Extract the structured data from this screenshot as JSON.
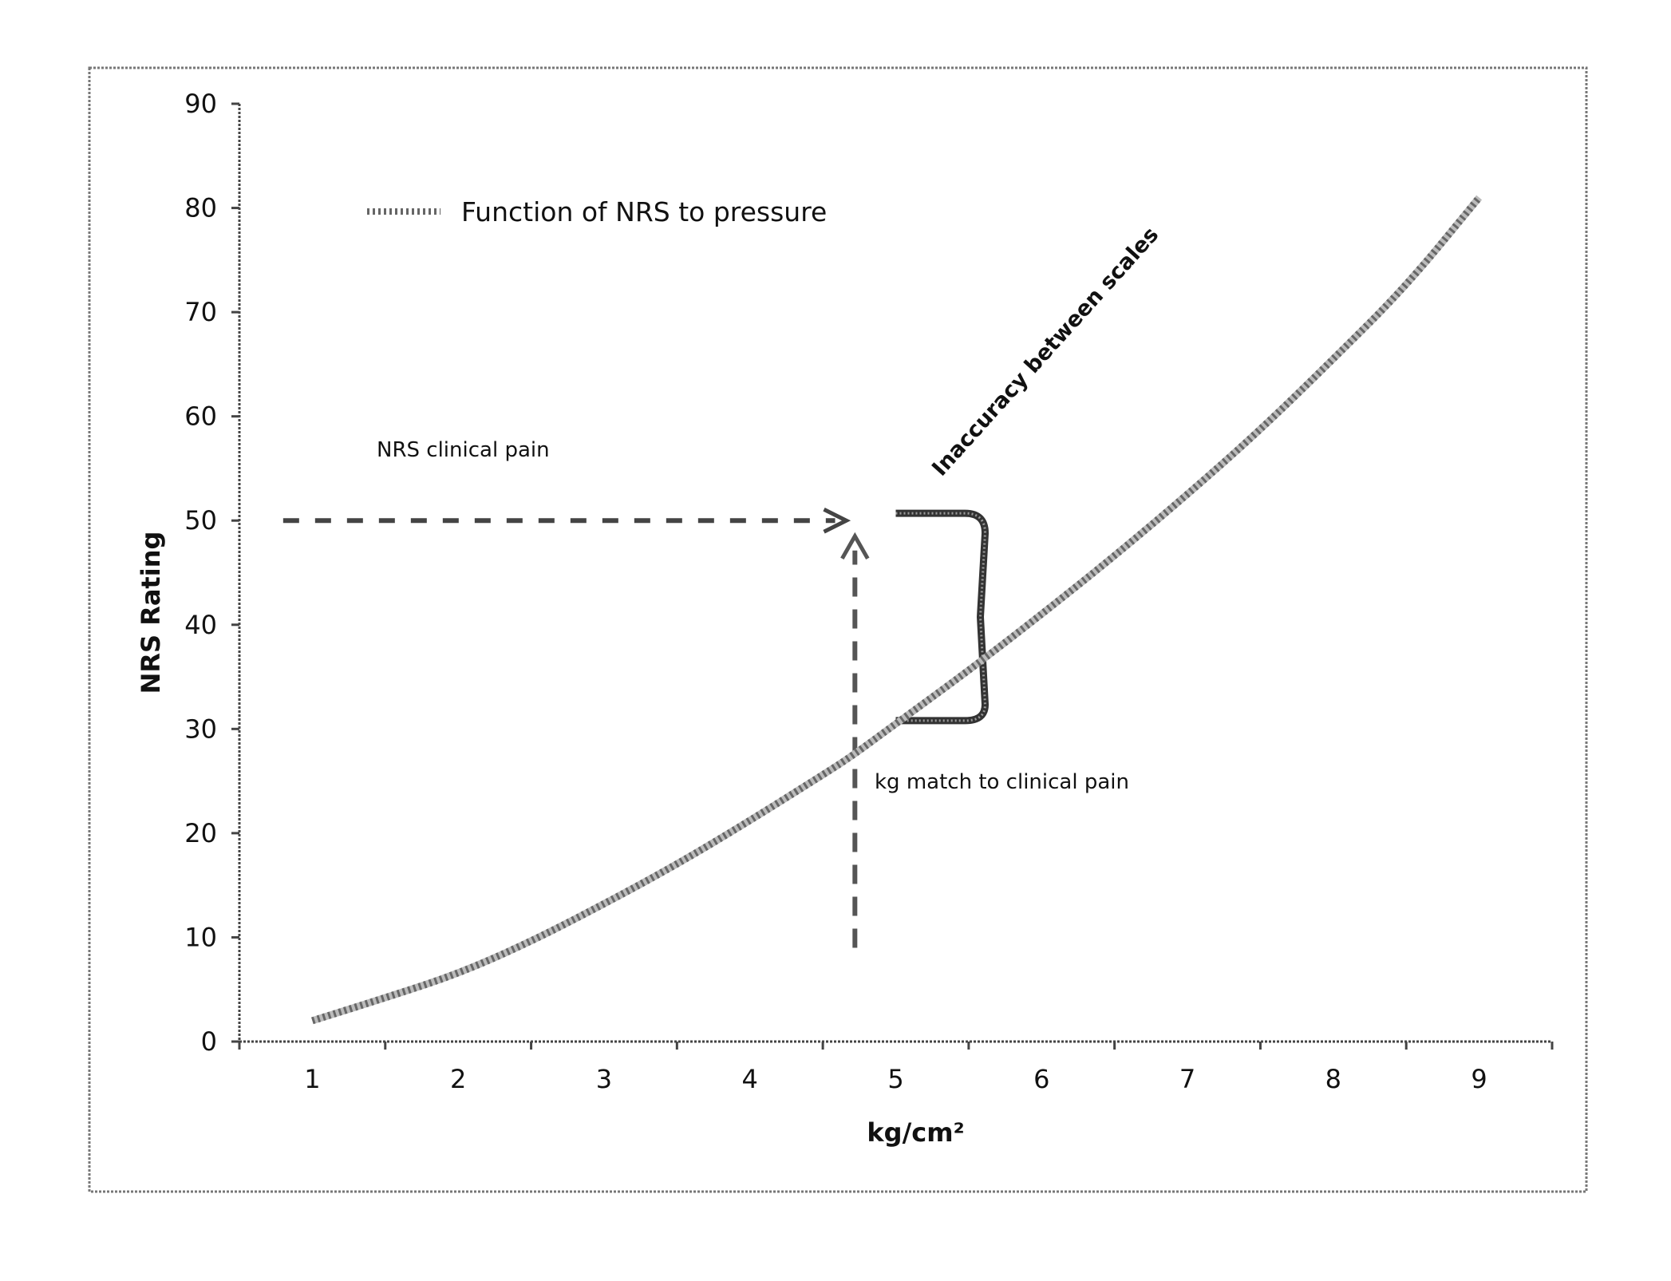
{
  "chart_data": {
    "type": "line",
    "xlabel": "kg/cm²",
    "ylabel": "NRS Rating",
    "xlim": [
      0.5,
      9.5
    ],
    "ylim": [
      0,
      90
    ],
    "x_ticks": [
      1,
      2,
      3,
      4,
      5,
      6,
      7,
      8,
      9
    ],
    "y_ticks": [
      0,
      10,
      20,
      30,
      40,
      50,
      60,
      70,
      80,
      90
    ],
    "grid": false,
    "legend_position": "top-left",
    "series": [
      {
        "name": "Function of NRS to pressure",
        "x": [
          1,
          1.5,
          2,
          2.5,
          3,
          3.5,
          4,
          4.5,
          4.7,
          5,
          5.5,
          6,
          6.5,
          7,
          7.5,
          8,
          8.5,
          9
        ],
        "y": [
          2,
          4.2,
          6.5,
          9.6,
          13.2,
          17,
          21.2,
          25.6,
          27.4,
          30.5,
          35.6,
          41,
          46.6,
          52.5,
          58.7,
          65.5,
          72.5,
          81
        ]
      }
    ],
    "annotations": {
      "nrs_clinical_pain": {
        "label": "NRS clinical pain",
        "y": 50,
        "x_start": 0.8,
        "x_end": 4.65
      },
      "kg_match": {
        "label": "kg match to clinical pain",
        "x": 4.72,
        "y_start": 9,
        "y_end": 48.5
      },
      "inaccuracy": {
        "label": "Inaccuracy between scales",
        "y_top": 50.7,
        "y_bottom": 30.8,
        "x": 5
      }
    }
  },
  "colors": {
    "line": "#666666",
    "axis": "#444444",
    "border": "#777777"
  }
}
